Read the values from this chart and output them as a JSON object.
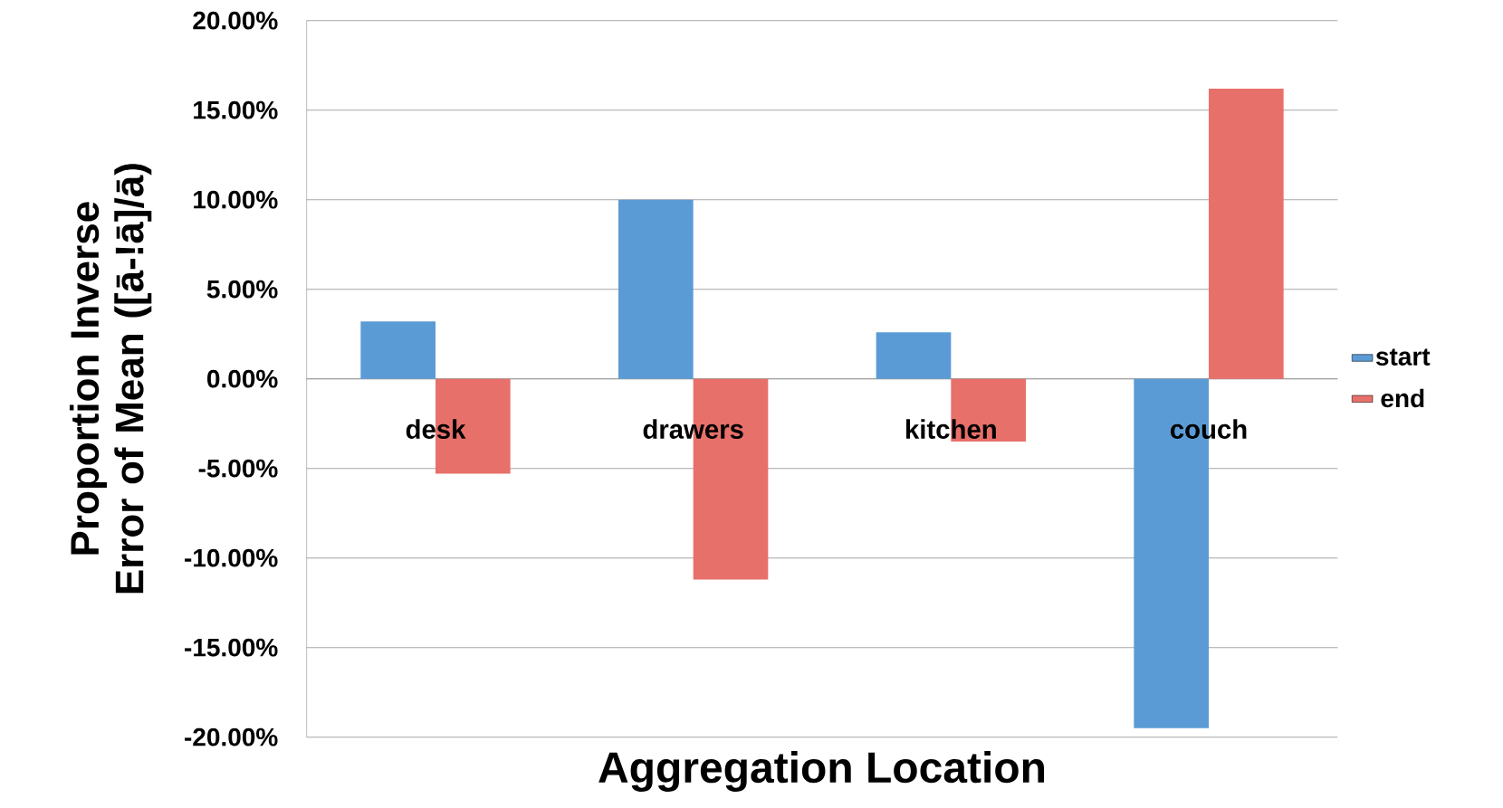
{
  "chart_data": {
    "type": "bar",
    "xlabel": "Aggregation Location",
    "ylabel": "Proportion Inverse Error of Mean ([ā-!ā]/ā)",
    "categories": [
      "desk",
      "drawers",
      "kitchen",
      "couch"
    ],
    "series": [
      {
        "name": "start",
        "color": "#5b9bd5",
        "values": [
          3.2,
          10.0,
          2.6,
          -19.5
        ]
      },
      {
        "name": "end",
        "color": "#e8706a",
        "values": [
          -5.3,
          -11.2,
          -3.5,
          16.2
        ]
      }
    ],
    "ylim": [
      -20,
      20
    ],
    "yticks": [
      {
        "value": -20,
        "label": "-20.00%"
      },
      {
        "value": -15,
        "label": "-15.00%"
      },
      {
        "value": -10,
        "label": "-10.00%"
      },
      {
        "value": -5,
        "label": "-5.00%"
      },
      {
        "value": 0,
        "label": "0.00%"
      },
      {
        "value": 5,
        "label": "5.00%"
      },
      {
        "value": 10,
        "label": "10.00%"
      },
      {
        "value": 15,
        "label": "15.00%"
      },
      {
        "value": 20,
        "label": "20.00%"
      }
    ],
    "grid": "y",
    "legend": "right"
  }
}
